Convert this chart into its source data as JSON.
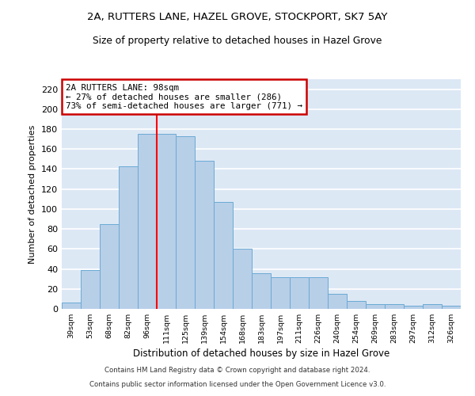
{
  "title_line1": "2A, RUTTERS LANE, HAZEL GROVE, STOCKPORT, SK7 5AY",
  "title_line2": "Size of property relative to detached houses in Hazel Grove",
  "xlabel": "Distribution of detached houses by size in Hazel Grove",
  "ylabel": "Number of detached properties",
  "categories": [
    "39sqm",
    "53sqm",
    "68sqm",
    "82sqm",
    "96sqm",
    "111sqm",
    "125sqm",
    "139sqm",
    "154sqm",
    "168sqm",
    "183sqm",
    "197sqm",
    "211sqm",
    "226sqm",
    "240sqm",
    "254sqm",
    "269sqm",
    "283sqm",
    "297sqm",
    "312sqm",
    "326sqm"
  ],
  "values": [
    6,
    39,
    85,
    143,
    175,
    175,
    173,
    148,
    107,
    60,
    36,
    32,
    32,
    32,
    15,
    8,
    5,
    5,
    3,
    5,
    3
  ],
  "bar_color": "#b8cfe8",
  "bar_edge_color": "#6aaad4",
  "bg_color": "#dde8f5",
  "grid_color": "#ffffff",
  "red_line_x": 4.5,
  "annotation_title": "2A RUTTERS LANE: 98sqm",
  "annotation_line2": "← 27% of detached houses are smaller (286)",
  "annotation_line3": "73% of semi-detached houses are larger (771) →",
  "annotation_box_color": "#ffffff",
  "annotation_box_edge": "#cc0000",
  "ylim_max": 230,
  "yticks": [
    0,
    20,
    40,
    60,
    80,
    100,
    120,
    140,
    160,
    180,
    200,
    220
  ],
  "footnote1": "Contains HM Land Registry data © Crown copyright and database right 2024.",
  "footnote2": "Contains public sector information licensed under the Open Government Licence v3.0."
}
